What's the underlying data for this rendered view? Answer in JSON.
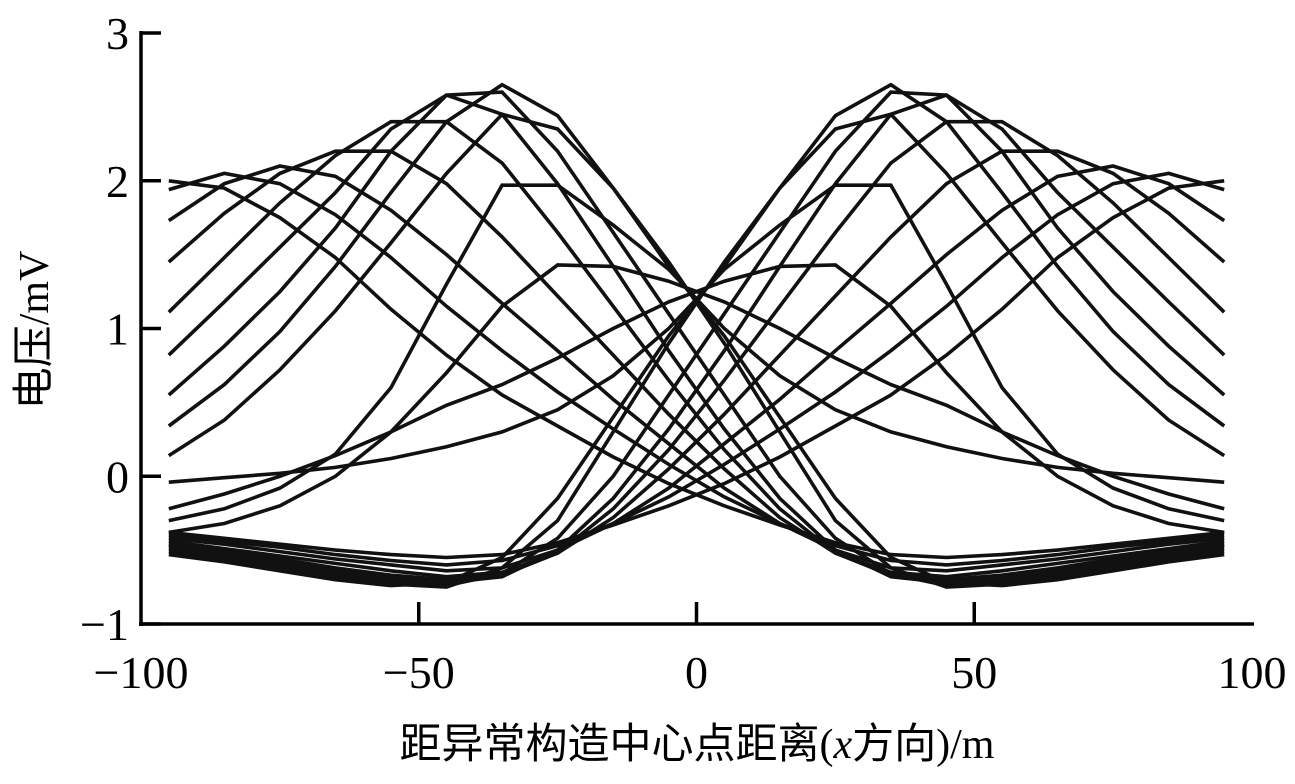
{
  "chart_data": {
    "type": "line",
    "xlabel_parts": [
      "距异常构造中心点距离(",
      "x",
      "方向)/m"
    ],
    "ylabel": "电压/mV",
    "xlim": [
      -100,
      100
    ],
    "ylim": [
      -1,
      3
    ],
    "xticks": [
      -100,
      -50,
      0,
      50,
      100
    ],
    "xtick_labels": [
      "−100",
      "−50",
      "0",
      "50",
      "100"
    ],
    "yticks": [
      -1,
      0,
      1,
      2,
      3
    ],
    "ytick_labels": [
      "−1",
      "0",
      "1",
      "2",
      "3"
    ],
    "grid": false,
    "line_color": "#111111",
    "x": [
      -95,
      -85,
      -75,
      -65,
      -55,
      -45,
      -35,
      -25,
      -15,
      -5,
      5,
      15,
      25,
      35,
      45,
      55,
      65,
      75,
      85,
      95
    ],
    "series": [
      {
        "values": [
          2.0,
          1.95,
          1.75,
          1.48,
          1.13,
          0.82,
          0.55,
          0.34,
          0.13,
          -0.05,
          -0.2,
          -0.33,
          -0.45,
          -0.53,
          -0.55,
          -0.53,
          -0.5,
          -0.46,
          -0.42,
          -0.38
        ]
      },
      {
        "values": [
          1.94,
          2.05,
          1.98,
          1.77,
          1.48,
          1.15,
          0.85,
          0.57,
          0.32,
          0.08,
          -0.14,
          -0.32,
          -0.47,
          -0.57,
          -0.6,
          -0.57,
          -0.53,
          -0.48,
          -0.44,
          -0.4
        ]
      },
      {
        "values": [
          1.73,
          1.98,
          2.1,
          2.03,
          1.8,
          1.5,
          1.17,
          0.85,
          0.52,
          0.22,
          -0.08,
          -0.32,
          -0.5,
          -0.62,
          -0.64,
          -0.6,
          -0.56,
          -0.51,
          -0.46,
          -0.42
        ]
      },
      {
        "values": [
          1.45,
          1.78,
          2.05,
          2.2,
          2.2,
          1.98,
          1.62,
          1.22,
          0.82,
          0.42,
          0.05,
          -0.28,
          -0.52,
          -0.65,
          -0.68,
          -0.64,
          -0.59,
          -0.54,
          -0.49,
          -0.44
        ]
      },
      {
        "values": [
          1.11,
          1.48,
          1.85,
          2.17,
          2.4,
          2.4,
          2.12,
          1.65,
          1.15,
          0.65,
          0.18,
          -0.22,
          -0.52,
          -0.67,
          -0.7,
          -0.67,
          -0.62,
          -0.56,
          -0.51,
          -0.46
        ]
      },
      {
        "values": [
          0.82,
          1.18,
          1.55,
          1.92,
          2.35,
          2.58,
          2.45,
          1.98,
          1.42,
          0.85,
          0.32,
          -0.15,
          -0.5,
          -0.68,
          -0.72,
          -0.69,
          -0.64,
          -0.58,
          -0.52,
          -0.47
        ]
      },
      {
        "values": [
          0.55,
          0.88,
          1.25,
          1.68,
          2.2,
          2.58,
          2.6,
          2.2,
          1.65,
          1.1,
          0.55,
          0.0,
          -0.42,
          -0.66,
          -0.74,
          -0.71,
          -0.66,
          -0.6,
          -0.54,
          -0.49
        ]
      },
      {
        "values": [
          0.34,
          0.62,
          0.98,
          1.42,
          1.92,
          2.4,
          2.65,
          2.44,
          1.95,
          1.45,
          0.9,
          0.3,
          -0.3,
          -0.62,
          -0.75,
          -0.73,
          -0.68,
          -0.62,
          -0.56,
          -0.51
        ]
      },
      {
        "values": [
          0.14,
          0.38,
          0.72,
          1.12,
          1.58,
          2.05,
          2.45,
          2.35,
          1.95,
          1.42,
          0.95,
          0.4,
          -0.15,
          -0.55,
          -0.72,
          -0.74,
          -0.7,
          -0.64,
          -0.58,
          -0.53
        ]
      },
      {
        "values": [
          -0.3,
          -0.22,
          -0.08,
          0.15,
          0.6,
          1.3,
          1.97,
          1.97,
          1.7,
          1.4,
          1.0,
          0.68,
          0.45,
          0.3,
          0.2,
          0.12,
          0.06,
          0.02,
          -0.01,
          -0.04
        ]
      },
      {
        "values": [
          -0.38,
          -0.32,
          -0.2,
          0.0,
          0.3,
          0.7,
          1.15,
          1.43,
          1.42,
          1.32,
          1.18,
          1.0,
          0.8,
          0.62,
          0.48,
          0.3,
          0.14,
          0.0,
          -0.12,
          -0.22
        ]
      },
      {
        "values": [
          -0.38,
          -0.42,
          -0.46,
          -0.5,
          -0.53,
          -0.55,
          -0.53,
          -0.45,
          -0.33,
          -0.2,
          -0.05,
          0.13,
          0.34,
          0.55,
          0.82,
          1.13,
          1.48,
          1.75,
          1.95,
          2.0
        ]
      },
      {
        "values": [
          -0.4,
          -0.44,
          -0.48,
          -0.53,
          -0.57,
          -0.6,
          -0.57,
          -0.47,
          -0.32,
          -0.14,
          0.08,
          0.32,
          0.57,
          0.85,
          1.15,
          1.48,
          1.77,
          1.98,
          2.05,
          1.94
        ]
      },
      {
        "values": [
          -0.42,
          -0.46,
          -0.51,
          -0.56,
          -0.6,
          -0.64,
          -0.62,
          -0.5,
          -0.32,
          -0.08,
          0.22,
          0.52,
          0.85,
          1.17,
          1.5,
          1.8,
          2.03,
          2.1,
          1.98,
          1.73
        ]
      },
      {
        "values": [
          -0.44,
          -0.49,
          -0.54,
          -0.59,
          -0.64,
          -0.68,
          -0.65,
          -0.52,
          -0.28,
          0.05,
          0.42,
          0.82,
          1.22,
          1.62,
          1.98,
          2.2,
          2.2,
          2.05,
          1.78,
          1.45
        ]
      },
      {
        "values": [
          -0.46,
          -0.51,
          -0.56,
          -0.62,
          -0.67,
          -0.7,
          -0.67,
          -0.52,
          -0.22,
          0.18,
          0.65,
          1.15,
          1.65,
          2.12,
          2.4,
          2.4,
          2.17,
          1.85,
          1.48,
          1.11
        ]
      },
      {
        "values": [
          -0.47,
          -0.52,
          -0.58,
          -0.64,
          -0.69,
          -0.72,
          -0.68,
          -0.5,
          -0.15,
          0.32,
          0.85,
          1.42,
          1.98,
          2.45,
          2.58,
          2.35,
          1.92,
          1.55,
          1.18,
          0.82
        ]
      },
      {
        "values": [
          -0.49,
          -0.54,
          -0.6,
          -0.66,
          -0.71,
          -0.74,
          -0.66,
          -0.42,
          0.0,
          0.55,
          1.1,
          1.65,
          2.2,
          2.6,
          2.58,
          2.2,
          1.68,
          1.25,
          0.88,
          0.55
        ]
      },
      {
        "values": [
          -0.51,
          -0.56,
          -0.62,
          -0.68,
          -0.73,
          -0.75,
          -0.62,
          -0.3,
          0.3,
          0.9,
          1.45,
          1.95,
          2.44,
          2.65,
          2.4,
          1.92,
          1.42,
          0.98,
          0.62,
          0.34
        ]
      },
      {
        "values": [
          -0.53,
          -0.58,
          -0.64,
          -0.7,
          -0.74,
          -0.72,
          -0.55,
          -0.15,
          0.4,
          0.95,
          1.42,
          1.95,
          2.35,
          2.45,
          2.05,
          1.58,
          1.12,
          0.72,
          0.38,
          0.14
        ]
      },
      {
        "values": [
          -0.04,
          -0.01,
          0.02,
          0.06,
          0.12,
          0.2,
          0.3,
          0.45,
          0.68,
          1.0,
          1.4,
          1.7,
          1.97,
          1.97,
          1.3,
          0.6,
          0.15,
          -0.08,
          -0.22,
          -0.3
        ]
      },
      {
        "values": [
          -0.22,
          -0.12,
          0.0,
          0.14,
          0.3,
          0.48,
          0.62,
          0.8,
          1.0,
          1.18,
          1.32,
          1.42,
          1.43,
          1.15,
          0.7,
          0.3,
          0.0,
          -0.2,
          -0.32,
          -0.38
        ]
      }
    ]
  }
}
